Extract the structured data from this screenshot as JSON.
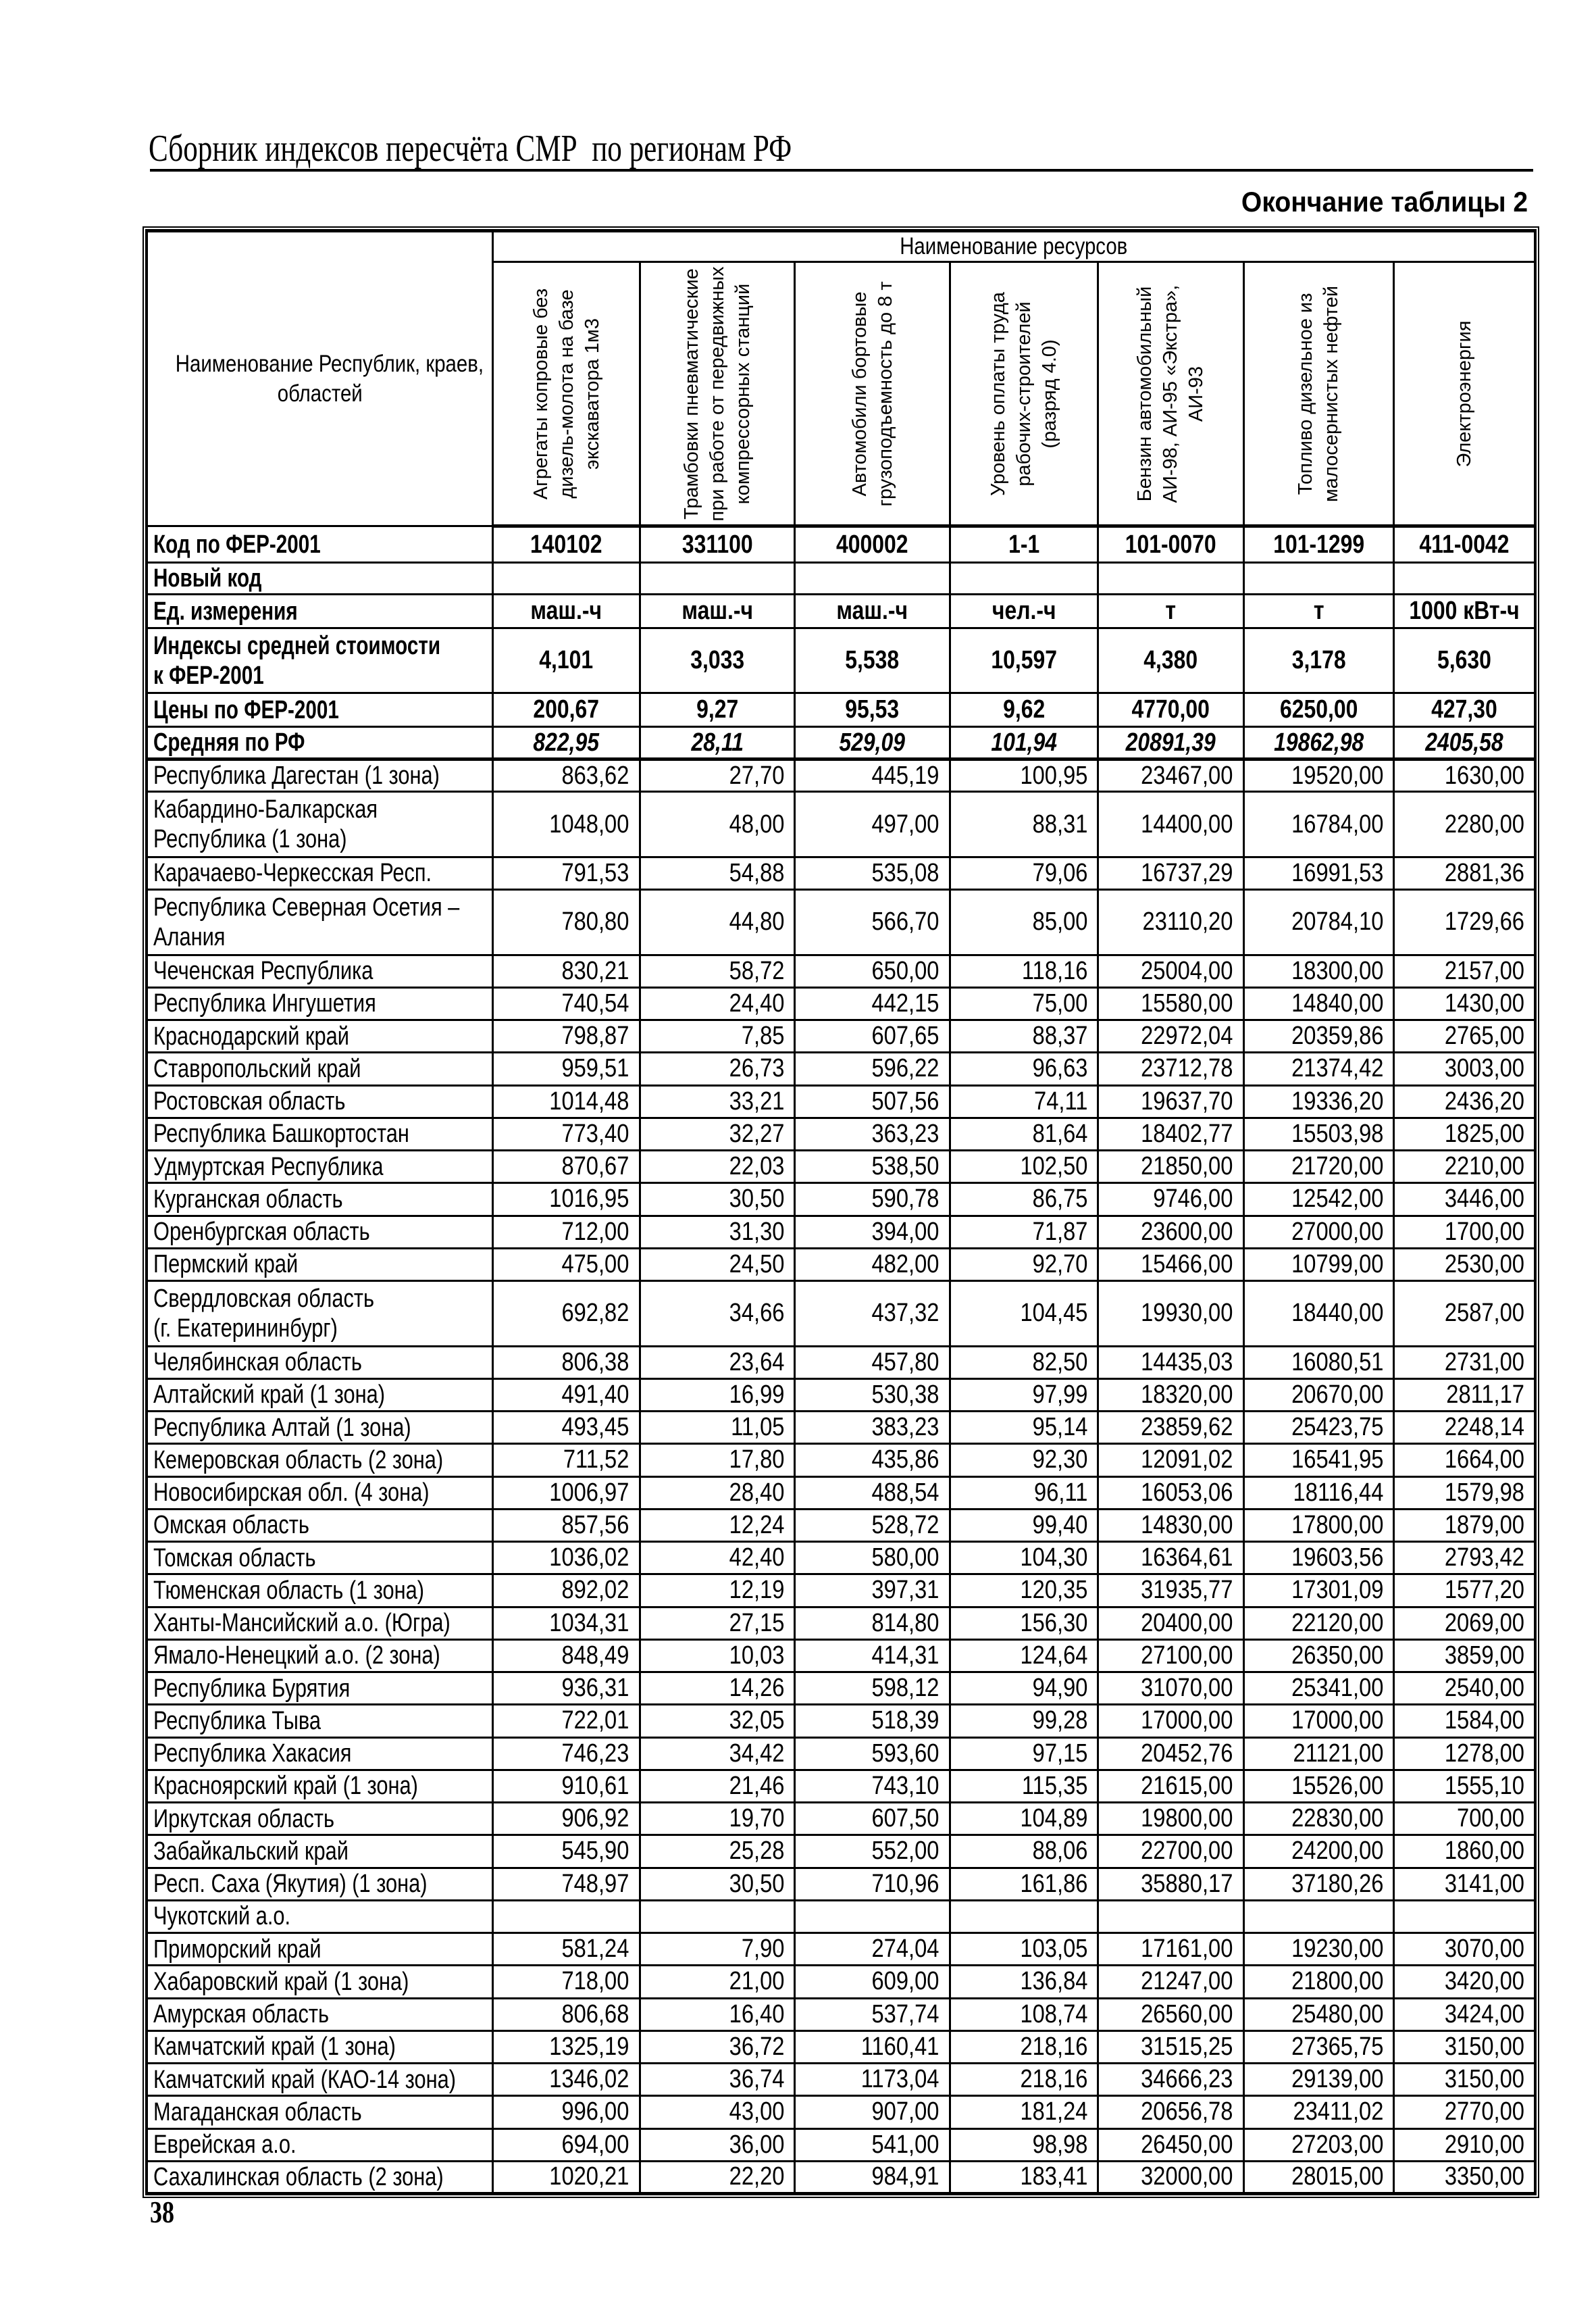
{
  "page": {
    "header_title": "Сборник индексов пересчёта СМР  по регионам РФ",
    "table_caption": "Окончание таблицы 2",
    "page_number": "38"
  },
  "table": {
    "resources_group_label": "Наименование ресурсов",
    "name_column_header": [
      "Наименование Республик, краев,",
      "областей"
    ],
    "resource_columns": [
      [
        "Агрегаты копровые без",
        "дизель-молота на базе",
        "экскаватора 1м3"
      ],
      [
        "Трамбовки пневматические",
        "при работе от передвижных",
        "компрессорных станций"
      ],
      [
        "Автомобили бортовые",
        "грузоподъемность до 8 т"
      ],
      [
        "Уровень оплаты труда",
        "рабочих-строителей",
        "(разряд 4.0)"
      ],
      [
        "Бензин автомобильный",
        "АИ-98, АИ-95 «Экстра»,",
        "АИ-93"
      ],
      [
        "Топливо дизельное из",
        "малосернистых нефтей"
      ],
      [
        "Электроэнергия"
      ]
    ],
    "meta_rows": [
      {
        "label": [
          "Код по ФЕР-2001"
        ],
        "values": [
          "140102",
          "331100",
          "400002",
          "1-1",
          "101-0070",
          "101-1299",
          "411-0042"
        ],
        "kind": "meta"
      },
      {
        "label": [
          "Новый код"
        ],
        "values": [
          "",
          "",
          "",
          "",
          "",
          "",
          ""
        ],
        "kind": "meta"
      },
      {
        "label": [
          "Ед. измерения"
        ],
        "values": [
          "маш.-ч",
          "маш.-ч",
          "маш.-ч",
          "чел.-ч",
          "т",
          "т",
          "1000 кВт-ч"
        ],
        "kind": "meta"
      },
      {
        "label": [
          "Индексы средней стоимости",
          "к ФЕР-2001"
        ],
        "values": [
          "4,101",
          "3,033",
          "5,538",
          "10,597",
          "4,380",
          "3,178",
          "5,630"
        ],
        "kind": "meta"
      },
      {
        "label": [
          "Цены по ФЕР-2001"
        ],
        "values": [
          "200,67",
          "9,27",
          "95,53",
          "9,62",
          "4770,00",
          "6250,00",
          "427,30"
        ],
        "kind": "meta"
      },
      {
        "label": [
          "Средняя по РФ"
        ],
        "values": [
          "822,95",
          "28,11",
          "529,09",
          "101,94",
          "20891,39",
          "19862,98",
          "2405,58"
        ],
        "kind": "avg"
      }
    ],
    "region_rows": [
      {
        "name": [
          "Республика Дагестан (1 зона)"
        ],
        "values": [
          "863,62",
          "27,70",
          "445,19",
          "100,95",
          "23467,00",
          "19520,00",
          "1630,00"
        ]
      },
      {
        "name": [
          "Кабардино-Балкарская",
          "Республика (1 зона)"
        ],
        "values": [
          "1048,00",
          "48,00",
          "497,00",
          "88,31",
          "14400,00",
          "16784,00",
          "2280,00"
        ]
      },
      {
        "name": [
          "Карачаево-Черкесская Респ."
        ],
        "values": [
          "791,53",
          "54,88",
          "535,08",
          "79,06",
          "16737,29",
          "16991,53",
          "2881,36"
        ]
      },
      {
        "name": [
          "Республика Северная Осетия –",
          "Алания"
        ],
        "values": [
          "780,80",
          "44,80",
          "566,70",
          "85,00",
          "23110,20",
          "20784,10",
          "1729,66"
        ]
      },
      {
        "name": [
          "Чеченская Республика"
        ],
        "values": [
          "830,21",
          "58,72",
          "650,00",
          "118,16",
          "25004,00",
          "18300,00",
          "2157,00"
        ]
      },
      {
        "name": [
          "Республика Ингушетия"
        ],
        "values": [
          "740,54",
          "24,40",
          "442,15",
          "75,00",
          "15580,00",
          "14840,00",
          "1430,00"
        ]
      },
      {
        "name": [
          "Краснодарский край"
        ],
        "values": [
          "798,87",
          "7,85",
          "607,65",
          "88,37",
          "22972,04",
          "20359,86",
          "2765,00"
        ]
      },
      {
        "name": [
          "Ставропольский край"
        ],
        "values": [
          "959,51",
          "26,73",
          "596,22",
          "96,63",
          "23712,78",
          "21374,42",
          "3003,00"
        ]
      },
      {
        "name": [
          "Ростовская область"
        ],
        "values": [
          "1014,48",
          "33,21",
          "507,56",
          "74,11",
          "19637,70",
          "19336,20",
          "2436,20"
        ]
      },
      {
        "name": [
          "Республика Башкортостан"
        ],
        "values": [
          "773,40",
          "32,27",
          "363,23",
          "81,64",
          "18402,77",
          "15503,98",
          "1825,00"
        ]
      },
      {
        "name": [
          "Удмуртская Республика"
        ],
        "values": [
          "870,67",
          "22,03",
          "538,50",
          "102,50",
          "21850,00",
          "21720,00",
          "2210,00"
        ]
      },
      {
        "name": [
          "Курганская область"
        ],
        "values": [
          "1016,95",
          "30,50",
          "590,78",
          "86,75",
          "9746,00",
          "12542,00",
          "3446,00"
        ]
      },
      {
        "name": [
          "Оренбургская область"
        ],
        "values": [
          "712,00",
          "31,30",
          "394,00",
          "71,87",
          "23600,00",
          "27000,00",
          "1700,00"
        ]
      },
      {
        "name": [
          "Пермский край"
        ],
        "values": [
          "475,00",
          "24,50",
          "482,00",
          "92,70",
          "15466,00",
          "10799,00",
          "2530,00"
        ]
      },
      {
        "name": [
          "Свердловская область",
          "(г. Екатерининбург)"
        ],
        "values": [
          "692,82",
          "34,66",
          "437,32",
          "104,45",
          "19930,00",
          "18440,00",
          "2587,00"
        ]
      },
      {
        "name": [
          "Челябинская область"
        ],
        "values": [
          "806,38",
          "23,64",
          "457,80",
          "82,50",
          "14435,03",
          "16080,51",
          "2731,00"
        ]
      },
      {
        "name": [
          "Алтайский край (1 зона)"
        ],
        "values": [
          "491,40",
          "16,99",
          "530,38",
          "97,99",
          "18320,00",
          "20670,00",
          "2811,17"
        ]
      },
      {
        "name": [
          "Республика Алтай (1 зона)"
        ],
        "values": [
          "493,45",
          "11,05",
          "383,23",
          "95,14",
          "23859,62",
          "25423,75",
          "2248,14"
        ]
      },
      {
        "name": [
          "Кемеровская область (2 зона)"
        ],
        "values": [
          "711,52",
          "17,80",
          "435,86",
          "92,30",
          "12091,02",
          "16541,95",
          "1664,00"
        ]
      },
      {
        "name": [
          "Новосибирская обл. (4 зона)"
        ],
        "values": [
          "1006,97",
          "28,40",
          "488,54",
          "96,11",
          "16053,06",
          "18116,44",
          "1579,98"
        ]
      },
      {
        "name": [
          "Омская область"
        ],
        "values": [
          "857,56",
          "12,24",
          "528,72",
          "99,40",
          "14830,00",
          "17800,00",
          "1879,00"
        ]
      },
      {
        "name": [
          "Томская область"
        ],
        "values": [
          "1036,02",
          "42,40",
          "580,00",
          "104,30",
          "16364,61",
          "19603,56",
          "2793,42"
        ]
      },
      {
        "name": [
          "Тюменская область (1 зона)"
        ],
        "values": [
          "892,02",
          "12,19",
          "397,31",
          "120,35",
          "31935,77",
          "17301,09",
          "1577,20"
        ]
      },
      {
        "name": [
          "Ханты-Мансийский а.о. (Югра)"
        ],
        "values": [
          "1034,31",
          "27,15",
          "814,80",
          "156,30",
          "20400,00",
          "22120,00",
          "2069,00"
        ]
      },
      {
        "name": [
          "Ямало-Ненецкий а.о. (2 зона)"
        ],
        "values": [
          "848,49",
          "10,03",
          "414,31",
          "124,64",
          "27100,00",
          "26350,00",
          "3859,00"
        ]
      },
      {
        "name": [
          "Республика Бурятия"
        ],
        "values": [
          "936,31",
          "14,26",
          "598,12",
          "94,90",
          "31070,00",
          "25341,00",
          "2540,00"
        ]
      },
      {
        "name": [
          "Республика Тыва"
        ],
        "values": [
          "722,01",
          "32,05",
          "518,39",
          "99,28",
          "17000,00",
          "17000,00",
          "1584,00"
        ]
      },
      {
        "name": [
          "Республика Хакасия"
        ],
        "values": [
          "746,23",
          "34,42",
          "593,60",
          "97,15",
          "20452,76",
          "21121,00",
          "1278,00"
        ]
      },
      {
        "name": [
          "Красноярский край (1 зона)"
        ],
        "values": [
          "910,61",
          "21,46",
          "743,10",
          "115,35",
          "21615,00",
          "15526,00",
          "1555,10"
        ]
      },
      {
        "name": [
          "Иркутская область"
        ],
        "values": [
          "906,92",
          "19,70",
          "607,50",
          "104,89",
          "19800,00",
          "22830,00",
          "700,00"
        ]
      },
      {
        "name": [
          "Забайкальский край"
        ],
        "values": [
          "545,90",
          "25,28",
          "552,00",
          "88,06",
          "22700,00",
          "24200,00",
          "1860,00"
        ]
      },
      {
        "name": [
          "Респ. Саха (Якутия) (1 зона)"
        ],
        "values": [
          "748,97",
          "30,50",
          "710,96",
          "161,86",
          "35880,17",
          "37180,26",
          "3141,00"
        ]
      },
      {
        "name": [
          "Чукотский а.о."
        ],
        "values": [
          "",
          "",
          "",
          "",
          "",
          "",
          ""
        ]
      },
      {
        "name": [
          "Приморский край"
        ],
        "values": [
          "581,24",
          "7,90",
          "274,04",
          "103,05",
          "17161,00",
          "19230,00",
          "3070,00"
        ]
      },
      {
        "name": [
          "Хабаровский край (1 зона)"
        ],
        "values": [
          "718,00",
          "21,00",
          "609,00",
          "136,84",
          "21247,00",
          "21800,00",
          "3420,00"
        ]
      },
      {
        "name": [
          "Амурская область"
        ],
        "values": [
          "806,68",
          "16,40",
          "537,74",
          "108,74",
          "26560,00",
          "25480,00",
          "3424,00"
        ]
      },
      {
        "name": [
          "Камчатский край (1 зона)"
        ],
        "values": [
          "1325,19",
          "36,72",
          "1160,41",
          "218,16",
          "31515,25",
          "27365,75",
          "3150,00"
        ]
      },
      {
        "name": [
          "Камчатский край (КАО-14 зона)"
        ],
        "values": [
          "1346,02",
          "36,74",
          "1173,04",
          "218,16",
          "34666,23",
          "29139,00",
          "3150,00"
        ]
      },
      {
        "name": [
          "Магаданская область"
        ],
        "values": [
          "996,00",
          "43,00",
          "907,00",
          "181,24",
          "20656,78",
          "23411,02",
          "2770,00"
        ]
      },
      {
        "name": [
          "Еврейская а.о."
        ],
        "values": [
          "694,00",
          "36,00",
          "541,00",
          "98,98",
          "26450,00",
          "27203,00",
          "2910,00"
        ]
      },
      {
        "name": [
          "Сахалинская область (2 зона)"
        ],
        "values": [
          "1020,21",
          "22,20",
          "984,91",
          "183,41",
          "32000,00",
          "28015,00",
          "3350,00"
        ]
      }
    ]
  }
}
